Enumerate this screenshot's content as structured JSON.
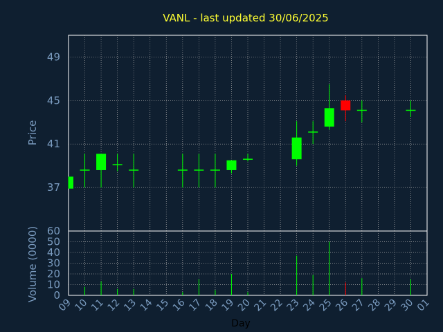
{
  "title": "VANL - last updated 30/06/2025",
  "colors": {
    "background": "#0f1f30",
    "title": "#ffff33",
    "axis_text": "#7a9bbf",
    "grid": "#aaaaaa",
    "axis": "#ffffff",
    "up": "#00ff00",
    "down": "#ff0000",
    "xlabel": "#000000"
  },
  "chart_data": [
    {
      "type": "candlestick",
      "ylabel": "Price",
      "ylim": [
        33,
        51
      ],
      "yticks": [
        37,
        41,
        45,
        49
      ],
      "x_ticklabels": [
        "09",
        "10",
        "11",
        "12",
        "13",
        "14",
        "15",
        "16",
        "17",
        "18",
        "19",
        "20",
        "21",
        "22",
        "23",
        "24",
        "25",
        "26",
        "27",
        "28",
        "29",
        "30",
        "01"
      ],
      "grid": true,
      "candles": [
        {
          "day": "09",
          "open": 36.9,
          "close": 38.0,
          "high": 38.0,
          "low": 36.9
        },
        {
          "day": "10",
          "open": 38.6,
          "close": 38.6,
          "high": 40.1,
          "low": 37.0
        },
        {
          "day": "11",
          "open": 38.6,
          "close": 40.1,
          "high": 40.1,
          "low": 37.0
        },
        {
          "day": "12",
          "open": 39.1,
          "close": 39.1,
          "high": 40.1,
          "low": 38.5
        },
        {
          "day": "13",
          "open": 38.6,
          "close": 38.6,
          "high": 40.1,
          "low": 37.0
        },
        {
          "day": "16",
          "open": 38.6,
          "close": 38.6,
          "high": 40.1,
          "low": 37.0
        },
        {
          "day": "17",
          "open": 38.6,
          "close": 38.6,
          "high": 40.1,
          "low": 37.0
        },
        {
          "day": "18",
          "open": 38.6,
          "close": 38.6,
          "high": 40.1,
          "low": 37.0
        },
        {
          "day": "19",
          "open": 38.6,
          "close": 39.5,
          "high": 39.5,
          "low": 38.3
        },
        {
          "day": "20",
          "open": 39.6,
          "close": 39.6,
          "high": 40.1,
          "low": 39.4
        },
        {
          "day": "23",
          "open": 39.6,
          "close": 41.6,
          "high": 43.1,
          "low": 39.0
        },
        {
          "day": "24",
          "open": 42.1,
          "close": 42.1,
          "high": 43.1,
          "low": 41.0
        },
        {
          "day": "25",
          "open": 42.6,
          "close": 44.3,
          "high": 46.5,
          "low": 42.3
        },
        {
          "day": "26",
          "open": 45.0,
          "close": 44.1,
          "high": 45.5,
          "low": 43.1
        },
        {
          "day": "27",
          "open": 44.1,
          "close": 44.1,
          "high": 45.0,
          "low": 43.0
        },
        {
          "day": "30",
          "open": 44.1,
          "close": 44.1,
          "high": 45.0,
          "low": 43.5
        }
      ]
    },
    {
      "type": "bar",
      "ylabel": "Volume (0000)",
      "xlabel": "Day",
      "ylim": [
        0,
        60
      ],
      "yticks": [
        0,
        10,
        20,
        30,
        40,
        50,
        60
      ],
      "bars": [
        {
          "day": "10",
          "value": 8,
          "direction": "up"
        },
        {
          "day": "11",
          "value": 13,
          "direction": "up"
        },
        {
          "day": "12",
          "value": 6,
          "direction": "up"
        },
        {
          "day": "13",
          "value": 6,
          "direction": "up"
        },
        {
          "day": "16",
          "value": 3,
          "direction": "up"
        },
        {
          "day": "17",
          "value": 15,
          "direction": "up"
        },
        {
          "day": "18",
          "value": 5,
          "direction": "up"
        },
        {
          "day": "19",
          "value": 20,
          "direction": "up"
        },
        {
          "day": "20",
          "value": 3,
          "direction": "up"
        },
        {
          "day": "23",
          "value": 37,
          "direction": "up"
        },
        {
          "day": "24",
          "value": 19,
          "direction": "up"
        },
        {
          "day": "25",
          "value": 50,
          "direction": "up"
        },
        {
          "day": "26",
          "value": 12,
          "direction": "down"
        },
        {
          "day": "27",
          "value": 16,
          "direction": "up"
        },
        {
          "day": "30",
          "value": 15,
          "direction": "up"
        }
      ]
    }
  ]
}
